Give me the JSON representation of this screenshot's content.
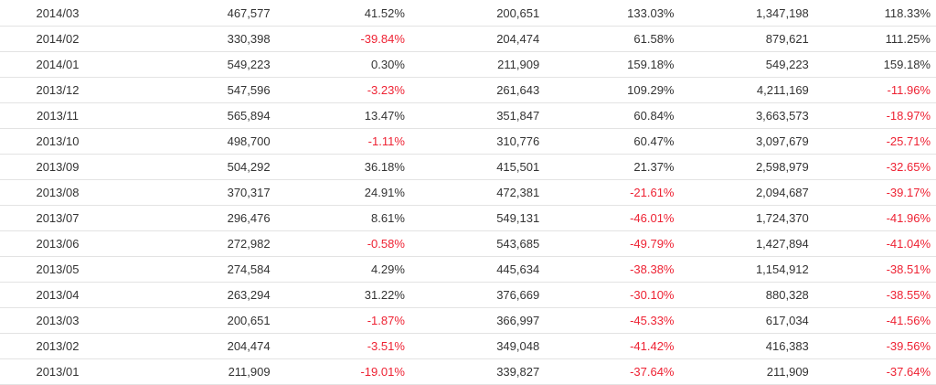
{
  "table": {
    "colors": {
      "text": "#333333",
      "negative": "#ee2233",
      "border": "#e3e3e3"
    },
    "rows": [
      [
        "2014/03",
        "467,577",
        "41.52%",
        "200,651",
        "133.03%",
        "1,347,198",
        "118.33%"
      ],
      [
        "2014/02",
        "330,398",
        "-39.84%",
        "204,474",
        "61.58%",
        "879,621",
        "111.25%"
      ],
      [
        "2014/01",
        "549,223",
        "0.30%",
        "211,909",
        "159.18%",
        "549,223",
        "159.18%"
      ],
      [
        "2013/12",
        "547,596",
        "-3.23%",
        "261,643",
        "109.29%",
        "4,211,169",
        "-11.96%"
      ],
      [
        "2013/11",
        "565,894",
        "13.47%",
        "351,847",
        "60.84%",
        "3,663,573",
        "-18.97%"
      ],
      [
        "2013/10",
        "498,700",
        "-1.11%",
        "310,776",
        "60.47%",
        "3,097,679",
        "-25.71%"
      ],
      [
        "2013/09",
        "504,292",
        "36.18%",
        "415,501",
        "21.37%",
        "2,598,979",
        "-32.65%"
      ],
      [
        "2013/08",
        "370,317",
        "24.91%",
        "472,381",
        "-21.61%",
        "2,094,687",
        "-39.17%"
      ],
      [
        "2013/07",
        "296,476",
        "8.61%",
        "549,131",
        "-46.01%",
        "1,724,370",
        "-41.96%"
      ],
      [
        "2013/06",
        "272,982",
        "-0.58%",
        "543,685",
        "-49.79%",
        "1,427,894",
        "-41.04%"
      ],
      [
        "2013/05",
        "274,584",
        "4.29%",
        "445,634",
        "-38.38%",
        "1,154,912",
        "-38.51%"
      ],
      [
        "2013/04",
        "263,294",
        "31.22%",
        "376,669",
        "-30.10%",
        "880,328",
        "-38.55%"
      ],
      [
        "2013/03",
        "200,651",
        "-1.87%",
        "366,997",
        "-45.33%",
        "617,034",
        "-41.56%"
      ],
      [
        "2013/02",
        "204,474",
        "-3.51%",
        "349,048",
        "-41.42%",
        "416,383",
        "-39.56%"
      ],
      [
        "2013/01",
        "211,909",
        "-19.01%",
        "339,827",
        "-37.64%",
        "211,909",
        "-37.64%"
      ]
    ]
  }
}
